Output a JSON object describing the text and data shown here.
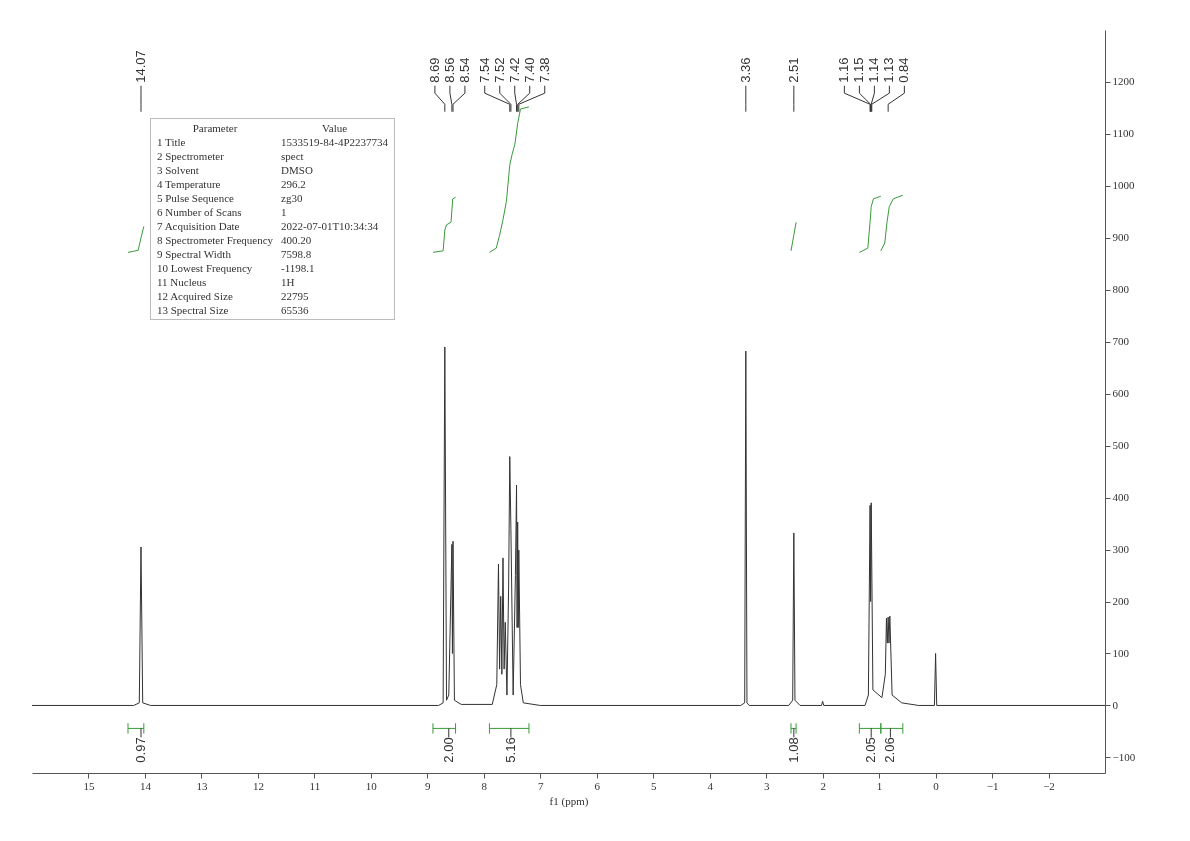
{
  "chart_data": {
    "type": "line",
    "xlabel": "f1 (ppm)",
    "xlim": [
      16,
      -3
    ],
    "xticks": [
      15,
      14,
      13,
      12,
      11,
      10,
      9,
      8,
      7,
      6,
      5,
      4,
      3,
      2,
      1,
      0,
      -1,
      -2
    ],
    "ylim": [
      -130,
      1300
    ],
    "yticks": [
      -100,
      0,
      100,
      200,
      300,
      400,
      500,
      600,
      700,
      800,
      900,
      1000,
      1100,
      1200
    ],
    "grid": false,
    "legend": false,
    "line_style": "solid",
    "marker": "none",
    "series": [
      {
        "color": "#333333",
        "x": [
          16,
          14.2,
          14.1,
          14.07,
          14.04,
          13.9,
          8.8,
          8.72,
          8.69,
          8.66,
          8.62,
          8.565,
          8.555,
          8.545,
          8.52,
          8.4,
          7.85,
          7.77,
          7.74,
          7.72,
          7.7,
          7.68,
          7.66,
          7.64,
          7.62,
          7.59,
          7.56,
          7.54,
          7.52,
          7.48,
          7.44,
          7.42,
          7.41,
          7.4,
          7.39,
          7.38,
          7.35,
          7.3,
          7,
          3.45,
          3.38,
          3.36,
          3.34,
          3.3,
          2.6,
          2.53,
          2.51,
          2.49,
          2.4,
          2.02,
          2,
          1.98,
          1.25,
          1.19,
          1.16,
          1.15,
          1.14,
          1.11,
          0.95,
          0.89,
          0.87,
          0.855,
          0.84,
          0.825,
          0.81,
          0.77,
          0.6,
          0.3,
          0.02,
          0,
          -0.02,
          -3
        ],
        "values": [
          0,
          0,
          5,
          305,
          5,
          0,
          0,
          5,
          690,
          10,
          20,
          310,
          100,
          316,
          10,
          2,
          2,
          40,
          272,
          70,
          210,
          60,
          284,
          70,
          160,
          20,
          230,
          479,
          340,
          20,
          250,
          424,
          150,
          353,
          150,
          299,
          40,
          5,
          0,
          0,
          5,
          682,
          5,
          0,
          0,
          10,
          332,
          10,
          0,
          0,
          8,
          0,
          0,
          20,
          385,
          200,
          390,
          30,
          15,
          60,
          168,
          120,
          170,
          120,
          172,
          20,
          5,
          0,
          0,
          100,
          0,
          0
        ]
      },
      {
        "color": "#3a9a3a",
        "x": [
          14.3,
          14.12,
          14.07,
          14.02
        ],
        "values": [
          872,
          876,
          900,
          922
        ]
      },
      {
        "color": "#3a9a3a",
        "x": [
          8.9,
          8.72,
          8.69,
          8.66,
          8.58,
          8.55,
          8.5
        ],
        "values": [
          872,
          875,
          915,
          925,
          930,
          975,
          978
        ]
      },
      {
        "color": "#3a9a3a",
        "x": [
          7.9,
          7.78,
          7.72,
          7.66,
          7.6,
          7.54,
          7.5,
          7.45,
          7.4,
          7.35,
          7.2
        ],
        "values": [
          872,
          880,
          905,
          935,
          970,
          1040,
          1060,
          1080,
          1120,
          1148,
          1152
        ]
      },
      {
        "color": "#3a9a3a",
        "x": [
          2.56,
          2.51,
          2.47
        ],
        "values": [
          875,
          905,
          930
        ]
      },
      {
        "color": "#3a9a3a",
        "x": [
          1.35,
          1.2,
          1.16,
          1.14,
          1.1,
          0.97
        ],
        "values": [
          872,
          880,
          930,
          960,
          975,
          980
        ]
      },
      {
        "color": "#3a9a3a",
        "x": [
          0.97,
          0.9,
          0.86,
          0.82,
          0.75,
          0.58
        ],
        "values": [
          875,
          890,
          930,
          960,
          975,
          982
        ]
      }
    ],
    "annotations": [
      "Parameter",
      "Value",
      "1 Title",
      "1533519-84-4P2237734",
      "2 Spectrometer",
      "spect",
      "3 Solvent",
      "DMSO",
      "4 Temperature",
      "296.2",
      "5 Pulse Sequence",
      "zg30",
      "6 Number of Scans",
      "1",
      "7 Acquisition Date",
      "2022-07-01T10:34:34",
      "8 Spectrometer Frequency",
      "400.20",
      "9 Spectral Width",
      "7598.8",
      "10 Lowest Frequency",
      "-1198.1",
      "11 Nucleus",
      "1H",
      "12 Acquired Size",
      "22795",
      "13 Spectral Size",
      "65536",
      {
        "text": "14.07",
        "x": 14.07
      },
      {
        "text": "8.69",
        "x": 8.69
      },
      {
        "text": "8.56",
        "x": 8.565
      },
      {
        "text": "8.54",
        "x": 8.545
      },
      {
        "text": "7.54",
        "x": 7.54
      },
      {
        "text": "7.52",
        "x": 7.52
      },
      {
        "text": "7.42",
        "x": 7.42
      },
      {
        "text": "7.40",
        "x": 7.4
      },
      {
        "text": "7.38",
        "x": 7.38
      },
      {
        "text": "3.36",
        "x": 3.36
      },
      {
        "text": "2.51",
        "x": 2.51
      },
      {
        "text": "1.16",
        "x": 1.16
      },
      {
        "text": "1.15",
        "x": 1.15
      },
      {
        "text": "1.14",
        "x": 1.14
      },
      {
        "text": "1.13",
        "x": 1.13
      },
      {
        "text": "0.84",
        "x": 0.84
      },
      {
        "text": "0.97",
        "x": 14.07
      },
      {
        "text": "2.00",
        "x": 8.62
      },
      {
        "text": "5.16",
        "x": 7.52
      },
      {
        "text": "1.08",
        "x": 2.51
      },
      {
        "text": "2.05",
        "x": 1.14
      },
      {
        "text": "2.06",
        "x": 0.8
      }
    ]
  }
}
